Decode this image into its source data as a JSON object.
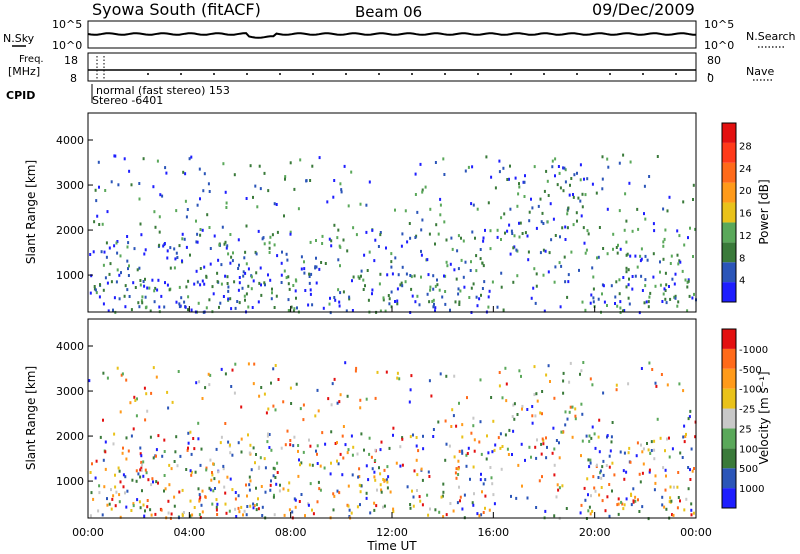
{
  "header": {
    "station": "Syowa South (fitACF)",
    "beam": "Beam 06",
    "date": "09/Dec/2009"
  },
  "noise_panel": {
    "left_label": "N.Sky",
    "right_label": "N.Search",
    "left_ticks": [
      "10^5",
      "10^0"
    ],
    "right_ticks": [
      "10^5",
      "10^0"
    ]
  },
  "freq_panel": {
    "left_label_1": "Freq.",
    "left_label_2": "[MHz]",
    "right_label": "Nave",
    "left_ticks": [
      "18",
      "8"
    ],
    "right_ticks": [
      "80",
      "0"
    ]
  },
  "cpid": {
    "label": "CPID",
    "mode_text": "normal (fast stereo) 153",
    "stereo_text": "Stereo -6401"
  },
  "chart_data": [
    {
      "type": "heatmap",
      "name": "power",
      "ylabel": "Slant Range [km]",
      "yticks": [
        1000,
        2000,
        3000,
        4000
      ],
      "ylim": [
        180,
        4600
      ],
      "xlim_hours": [
        0,
        24
      ],
      "colorbar_label": "Power [dB]",
      "colorbar_ticks": [
        "4",
        "8",
        "12",
        "16",
        "20",
        "24",
        "28"
      ],
      "colorbar_colors": [
        "#1e1eff",
        "#2b55b8",
        "#3a7a3a",
        "#5aa85a",
        "#e9c21a",
        "#ff9a1a",
        "#ff6a1a",
        "#ff3a1a",
        "#e31010"
      ]
    },
    {
      "type": "heatmap",
      "name": "velocity",
      "ylabel": "Slant Range [km]",
      "yticks": [
        1000,
        2000,
        3000,
        4000
      ],
      "ylim": [
        180,
        4600
      ],
      "xlim_hours": [
        0,
        24
      ],
      "colorbar_label": "Velocity [m s⁻¹]",
      "colorbar_ticks": [
        "1000",
        "500",
        "100",
        "25",
        "-25",
        "-100",
        "-500",
        "-1000"
      ],
      "colorbar_colors": [
        "#1e1eff",
        "#2b55b8",
        "#3a7a3a",
        "#5aa85a",
        "#c8c8c8",
        "#e9c21a",
        "#ff9a1a",
        "#ff6a1a",
        "#e31010"
      ]
    }
  ],
  "xaxis": {
    "title": "Time UT",
    "ticks": [
      "00:00",
      "04:00",
      "08:00",
      "12:00",
      "16:00",
      "20:00",
      "00:00"
    ]
  }
}
